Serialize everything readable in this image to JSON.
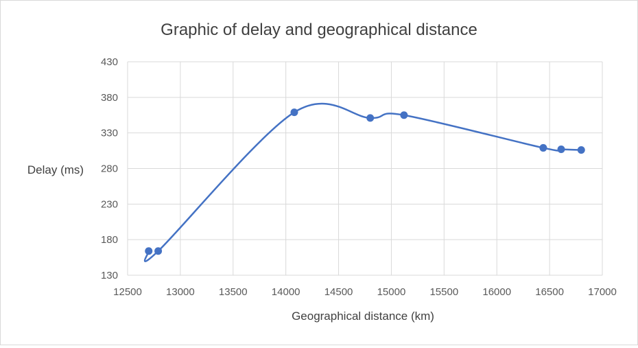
{
  "chart_data": {
    "type": "line",
    "smooth": true,
    "markers": true,
    "title": "Graphic of delay and geographical distance",
    "xlabel": "Geographical distance (km)",
    "ylabel": "Delay (ms)",
    "xlim": [
      12500,
      17000
    ],
    "ylim": [
      130,
      430
    ],
    "xticks": [
      12500,
      13000,
      13500,
      14000,
      14500,
      15000,
      15500,
      16000,
      16500,
      17000
    ],
    "yticks": [
      130,
      180,
      230,
      280,
      330,
      380,
      430
    ],
    "grid": true,
    "legend": "none",
    "series_color": "#4472C4",
    "grid_color": "#d9d9d9",
    "series": [
      {
        "x": [
          12700,
          12790,
          14080,
          14800,
          15120,
          16440,
          16610,
          16800
        ],
        "values": [
          164,
          164,
          359,
          351,
          355,
          309,
          307,
          306
        ]
      }
    ]
  }
}
